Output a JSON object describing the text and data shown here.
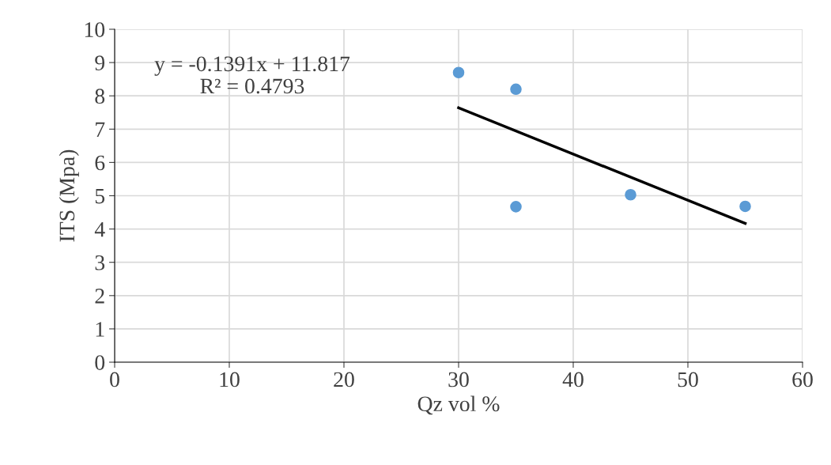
{
  "chart_data": {
    "type": "scatter",
    "xlabel": "Qz vol %",
    "ylabel": "ITS (Mpa)",
    "series": [
      {
        "color": "#5b9bd5",
        "x": [
          30,
          35,
          35,
          45,
          55
        ],
        "values": [
          8.7,
          8.2,
          4.67,
          5.03,
          4.68
        ],
        "marker": "circle"
      },
      {
        "type": "line",
        "color": "#000000",
        "x": [
          30,
          55
        ],
        "values": [
          7.64,
          4.17
        ],
        "marker": "none",
        "line_style": "solid"
      }
    ],
    "annotations": [
      "y = -0.1391x + 11.817\nR² = 0.4793"
    ],
    "xlim": [
      0,
      60
    ],
    "xticks": [
      0,
      10,
      20,
      30,
      40,
      50,
      60
    ],
    "ylim": [
      0,
      10
    ],
    "yticks": [
      0,
      1,
      2,
      3,
      4,
      5,
      6,
      7,
      8,
      9,
      10
    ],
    "grid": true,
    "legend": false
  }
}
